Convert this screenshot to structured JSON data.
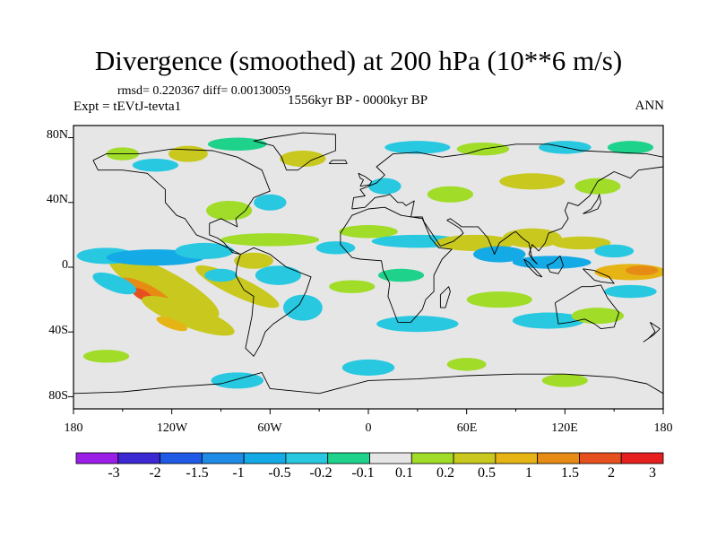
{
  "title": "Divergence (smoothed) at 200 hPa (10**6 m/s)",
  "stats": "rmsd= 0.220367 diff= 0.00130059",
  "experiment": "Expt = tEVtJ-tevta1",
  "period": "1556kyr BP - 0000kyr BP",
  "season": "ANN",
  "latitude_labels": [
    "80N",
    "40N",
    "0",
    "40S",
    "80S"
  ],
  "longitude_labels": [
    "180",
    "120W",
    "60W",
    "0",
    "60E",
    "120E",
    "180"
  ],
  "colorbar": {
    "labels": [
      "-3",
      "-2",
      "-1.5",
      "-1",
      "-0.5",
      "-0.2",
      "-0.1",
      "0.1",
      "0.2",
      "0.5",
      "1",
      "1.5",
      "2",
      "3"
    ],
    "colors": [
      "#9a1ee6",
      "#3c28d2",
      "#1e5ae6",
      "#1e8ce6",
      "#14aae6",
      "#28c8e1",
      "#1ed28c",
      "#e6e6e6",
      "#a0dc28",
      "#c8c81e",
      "#e6b414",
      "#e68c14",
      "#e6501e",
      "#e61e1e"
    ]
  },
  "field_colors": {
    "background": "#e6e6e6",
    "neg_weak": "#1ed28c",
    "neg_mid": "#28c8e1",
    "neg_strong": "#14aae6",
    "pos_weak": "#a0dc28",
    "pos_mid": "#c8c81e",
    "pos_strong": "#e6b414",
    "pos_vstrong": "#e68c14",
    "pos_max": "#e6501e"
  }
}
